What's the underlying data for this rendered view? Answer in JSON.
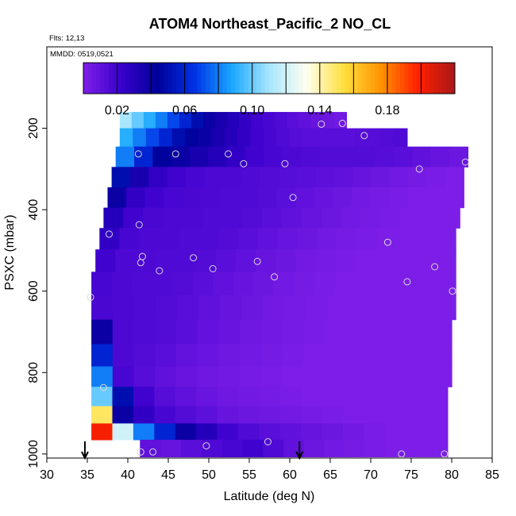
{
  "chart_data": {
    "type": "heatmap",
    "title": "ATOM4 Northeast_Pacific_2 NO_CL",
    "flights_label": "Flts: 12,13",
    "mmdd_label": "MMDD: 0519,0521",
    "xlabel": "Latitude (deg N)",
    "ylabel": "PSXC (mbar)",
    "xlim": [
      30,
      85
    ],
    "ylim": [
      1010,
      0
    ],
    "x_ticks": [
      "30",
      "35",
      "40",
      "45",
      "50",
      "55",
      "60",
      "65",
      "70",
      "75",
      "80",
      "85"
    ],
    "y_ticks": [
      "200",
      "400",
      "600",
      "800",
      "1000"
    ],
    "colorbar": {
      "range": [
        0,
        0.22
      ],
      "tick_labels": [
        "0.02",
        "0.06",
        "0.10",
        "0.14",
        "0.18"
      ],
      "colors": [
        "#7f1fe8",
        "#3a00cc",
        "#00009a",
        "#0032e6",
        "#1aa8ff",
        "#a8e6ff",
        "#fffff0",
        "#ffe040",
        "#ff9400",
        "#ff2000",
        "#aa1818"
      ]
    },
    "grid": false,
    "arrows_at_latitude": [
      34.7,
      61.2
    ],
    "layers": [
      {
        "p": 180,
        "start": 39,
        "end": 67,
        "values": [
          0.11,
          0.1,
          0.09,
          0.08,
          0.07,
          0.06,
          0.05,
          0.04,
          0.035,
          0.03,
          0.025,
          0.02,
          0.018,
          0.015,
          0.012,
          0.01,
          0.008,
          0.006,
          0.004
        ]
      },
      {
        "p": 220,
        "start": 39,
        "end": 74.5,
        "values": [
          0.09,
          0.08,
          0.07,
          0.06,
          0.05,
          0.045,
          0.04,
          0.035,
          0.03,
          0.025,
          0.02,
          0.018,
          0.015,
          0.013,
          0.012,
          0.012,
          0.012,
          0.012,
          0.013,
          0.013,
          0.014,
          0.015
        ]
      },
      {
        "p": 270,
        "start": 38.5,
        "end": 82,
        "values": [
          0.08,
          0.06,
          0.045,
          0.04,
          0.035,
          0.03,
          0.025,
          0.02,
          0.018,
          0.016,
          0.015,
          0.014,
          0.014,
          0.014,
          0.013,
          0.012,
          0.01,
          0.008,
          0.006
        ]
      },
      {
        "p": 320,
        "start": 38,
        "end": 81.5,
        "values": [
          0.05,
          0.035,
          0.025,
          0.02,
          0.018,
          0.016,
          0.016,
          0.015,
          0.014,
          0.013,
          0.012,
          0.011,
          0.01,
          0.008,
          0.006,
          0.004,
          0.003,
          0.002,
          0.001
        ]
      },
      {
        "p": 370,
        "start": 37.5,
        "end": 81.5,
        "values": [
          0.04,
          0.025,
          0.02,
          0.018,
          0.017,
          0.016,
          0.015,
          0.015,
          0.014,
          0.012,
          0.01,
          0.008,
          0.006,
          0.004,
          0.003,
          0.002,
          0.001,
          0.001,
          0.001
        ]
      },
      {
        "p": 420,
        "start": 37,
        "end": 81,
        "values": [
          0.03,
          0.02,
          0.017,
          0.016,
          0.016,
          0.015,
          0.015,
          0.014,
          0.012,
          0.01,
          0.008,
          0.006,
          0.004,
          0.003,
          0.002,
          0.001,
          0.001,
          0.001
        ]
      },
      {
        "p": 470,
        "start": 36.5,
        "end": 80.5,
        "values": [
          0.025,
          0.018,
          0.016,
          0.016,
          0.015,
          0.015,
          0.014,
          0.012,
          0.01,
          0.008,
          0.006,
          0.004,
          0.003,
          0.002,
          0.001,
          0.001,
          0.001,
          0.001
        ]
      },
      {
        "p": 525,
        "start": 36,
        "end": 80.5,
        "values": [
          0.02,
          0.016,
          0.016,
          0.015,
          0.015,
          0.014,
          0.012,
          0.01,
          0.008,
          0.006,
          0.004,
          0.003,
          0.002,
          0.001,
          0.001,
          0.001,
          0.001,
          0.001
        ]
      },
      {
        "p": 580,
        "start": 35.5,
        "end": 80.5,
        "values": [
          0.018,
          0.016,
          0.015,
          0.015,
          0.014,
          0.012,
          0.01,
          0.008,
          0.006,
          0.004,
          0.003,
          0.002,
          0.001,
          0.001,
          0.001,
          0.001,
          0.001,
          0.001
        ]
      },
      {
        "p": 640,
        "start": 35.5,
        "end": 80.5,
        "values": [
          0.017,
          0.016,
          0.015,
          0.014,
          0.012,
          0.01,
          0.008,
          0.006,
          0.004,
          0.003,
          0.002,
          0.001,
          0.001,
          0.001,
          0.001,
          0.001,
          0.001
        ]
      },
      {
        "p": 700,
        "start": 35.5,
        "end": 80,
        "values": [
          0.04,
          0.016,
          0.015,
          0.014,
          0.012,
          0.009,
          0.007,
          0.005,
          0.004,
          0.003,
          0.002,
          0.001,
          0.001,
          0.001,
          0.001,
          0.001,
          0.001
        ]
      },
      {
        "p": 760,
        "start": 35.5,
        "end": 80,
        "values": [
          0.06,
          0.016,
          0.014,
          0.012,
          0.009,
          0.007,
          0.005,
          0.004,
          0.003,
          0.002,
          0.001,
          0.001,
          0.001,
          0.001,
          0.001,
          0.001,
          0.001
        ]
      },
      {
        "p": 810,
        "start": 35.5,
        "end": 80,
        "values": [
          0.08,
          0.018,
          0.013,
          0.01,
          0.007,
          0.005,
          0.004,
          0.003,
          0.002,
          0.001,
          0.001,
          0.001,
          0.001,
          0.001,
          0.001,
          0.001,
          0.001
        ]
      },
      {
        "p": 860,
        "start": 35.5,
        "end": 79.5,
        "values": [
          0.1,
          0.05,
          0.02,
          0.013,
          0.01,
          0.007,
          0.005,
          0.004,
          0.003,
          0.002,
          0.001,
          0.001,
          0.001,
          0.001,
          0.001,
          0.001,
          0.001
        ]
      },
      {
        "p": 905,
        "start": 35.5,
        "end": 79.5,
        "values": [
          0.15,
          0.04,
          0.025,
          0.018,
          0.014,
          0.011,
          0.008,
          0.006,
          0.005,
          0.004,
          0.003,
          0.002,
          0.001,
          0.001,
          0.001,
          0.001,
          0.001
        ]
      },
      {
        "p": 945,
        "start": 35.5,
        "end": 79.5,
        "values": [
          0.2,
          0.12,
          0.08,
          0.06,
          0.04,
          0.03,
          0.02,
          0.015,
          0.012,
          0.01,
          0.008,
          0.006,
          0.004,
          0.002,
          0.001,
          0.001,
          0.001
        ]
      },
      {
        "p": 985,
        "start": 41.5,
        "end": 79.5,
        "values": [
          0.01,
          0.008,
          0.012,
          0.015,
          0.018,
          0.02,
          0.015,
          0.01,
          0.006,
          0.004,
          0.003,
          0.002,
          0.001,
          0.001,
          0.001
        ]
      }
    ],
    "points": [
      {
        "lat": 63.9,
        "p": 190
      },
      {
        "lat": 66.5,
        "p": 188
      },
      {
        "lat": 69.2,
        "p": 218
      },
      {
        "lat": 41.3,
        "p": 263
      },
      {
        "lat": 45.9,
        "p": 263
      },
      {
        "lat": 52.4,
        "p": 263
      },
      {
        "lat": 54.3,
        "p": 287
      },
      {
        "lat": 59.4,
        "p": 287
      },
      {
        "lat": 76.0,
        "p": 300
      },
      {
        "lat": 81.7,
        "p": 283
      },
      {
        "lat": 60.4,
        "p": 370
      },
      {
        "lat": 41.4,
        "p": 437
      },
      {
        "lat": 37.7,
        "p": 460
      },
      {
        "lat": 72.1,
        "p": 480
      },
      {
        "lat": 41.8,
        "p": 515
      },
      {
        "lat": 41.6,
        "p": 530
      },
      {
        "lat": 48.1,
        "p": 518
      },
      {
        "lat": 43.9,
        "p": 550
      },
      {
        "lat": 50.5,
        "p": 545
      },
      {
        "lat": 56.0,
        "p": 527
      },
      {
        "lat": 58.1,
        "p": 565
      },
      {
        "lat": 77.9,
        "p": 540
      },
      {
        "lat": 74.5,
        "p": 577
      },
      {
        "lat": 35.4,
        "p": 615
      },
      {
        "lat": 80.1,
        "p": 600
      },
      {
        "lat": 37.0,
        "p": 837
      },
      {
        "lat": 57.3,
        "p": 970
      },
      {
        "lat": 49.7,
        "p": 980
      },
      {
        "lat": 41.6,
        "p": 995
      },
      {
        "lat": 43.1,
        "p": 995
      },
      {
        "lat": 73.8,
        "p": 1000
      },
      {
        "lat": 79.1,
        "p": 1000
      }
    ]
  }
}
